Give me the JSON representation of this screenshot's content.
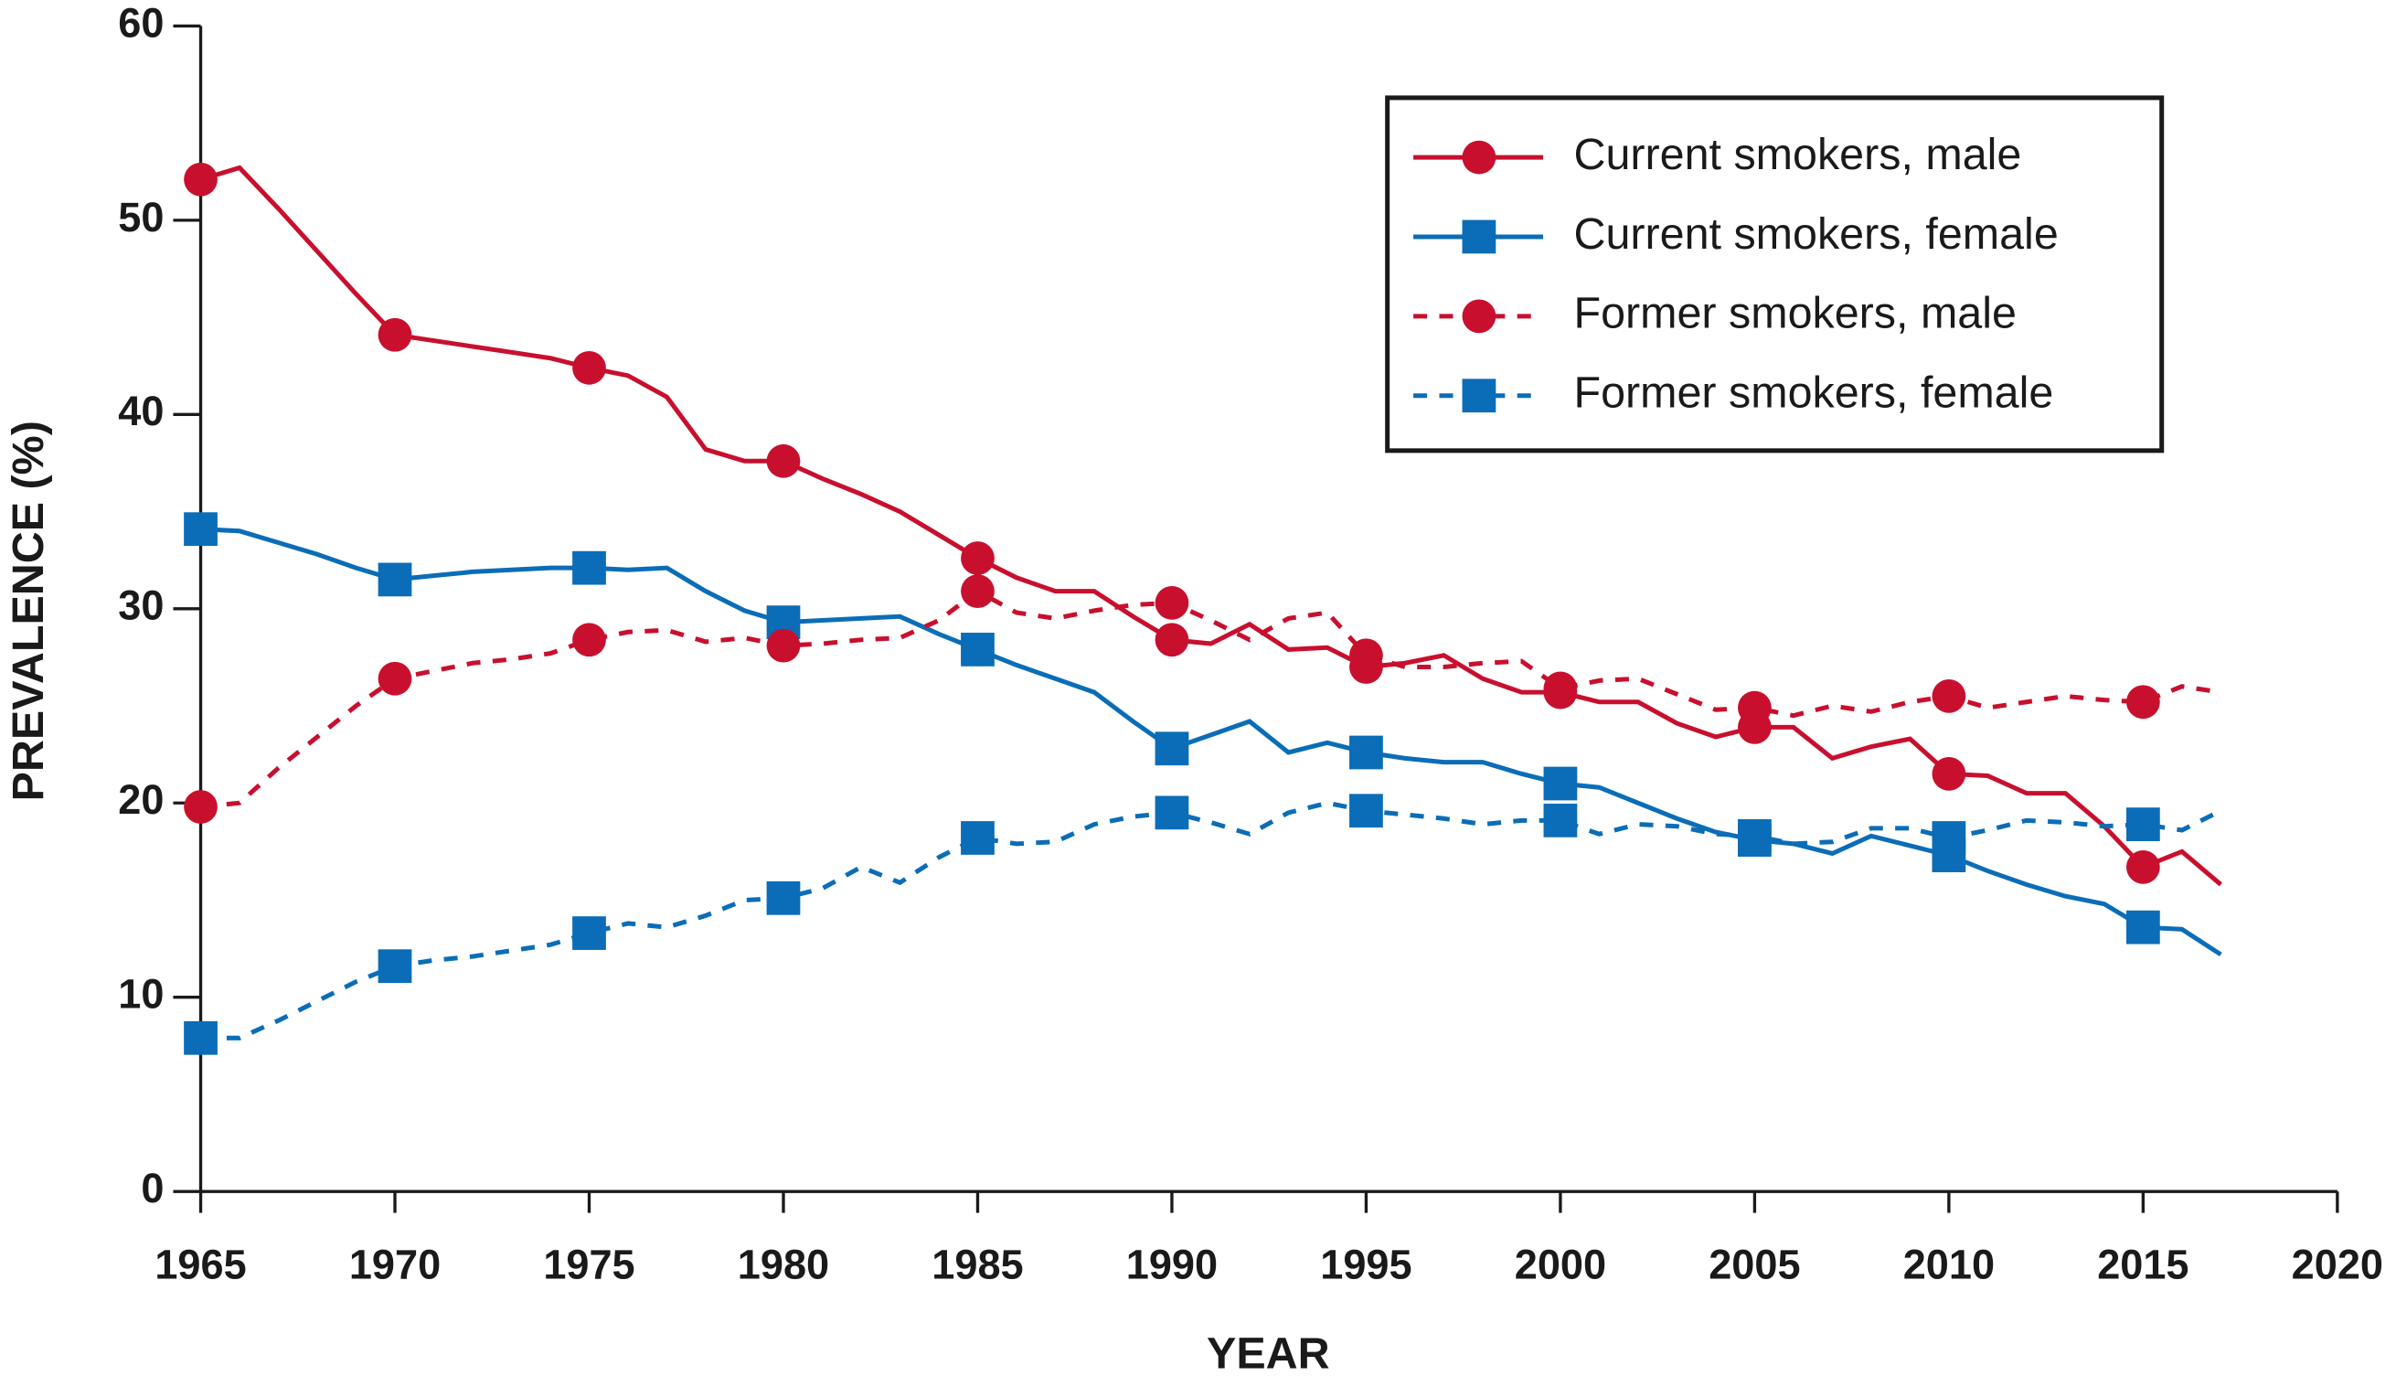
{
  "chart_data": {
    "type": "line",
    "x_label": "YEAR",
    "y_label": "PREVALENCE (%)",
    "x": [
      1965,
      1966,
      1967,
      1968,
      1969,
      1970,
      1971,
      1972,
      1973,
      1974,
      1975,
      1976,
      1977,
      1978,
      1979,
      1980,
      1981,
      1982,
      1983,
      1984,
      1985,
      1986,
      1987,
      1988,
      1989,
      1990,
      1991,
      1992,
      1993,
      1994,
      1995,
      1996,
      1997,
      1998,
      1999,
      2000,
      2001,
      2002,
      2003,
      2004,
      2005,
      2006,
      2007,
      2008,
      2009,
      2010,
      2011,
      2012,
      2013,
      2014,
      2015,
      2016,
      2017
    ],
    "series": [
      {
        "name": "Current smokers, male",
        "color": "#c8102e",
        "line_style": "solid",
        "marker": "circle",
        "values": [
          52.1,
          52.7,
          50.6,
          48.4,
          46.2,
          44.1,
          43.8,
          43.5,
          43.2,
          42.9,
          42.4,
          42.0,
          40.9,
          38.2,
          37.6,
          37.6,
          36.7,
          35.9,
          35.0,
          33.8,
          32.6,
          31.6,
          30.9,
          30.9,
          29.6,
          28.4,
          28.2,
          29.2,
          27.9,
          28.0,
          27.0,
          27.2,
          27.6,
          26.4,
          25.7,
          25.7,
          25.2,
          25.2,
          24.1,
          23.4,
          23.9,
          23.9,
          22.3,
          22.9,
          23.3,
          21.5,
          21.4,
          20.5,
          20.5,
          18.8,
          16.7,
          17.5,
          15.8
        ]
      },
      {
        "name": "Current smokers, female",
        "color": "#0b6db7",
        "line_style": "solid",
        "marker": "square",
        "values": [
          34.1,
          34.0,
          33.4,
          32.8,
          32.1,
          31.5,
          31.7,
          31.9,
          32.0,
          32.1,
          32.1,
          32.0,
          32.1,
          30.9,
          29.9,
          29.3,
          29.4,
          29.5,
          29.6,
          28.7,
          27.9,
          27.1,
          26.4,
          25.7,
          24.2,
          22.8,
          23.5,
          24.2,
          22.6,
          23.1,
          22.6,
          22.3,
          22.1,
          22.1,
          21.5,
          21.0,
          20.8,
          20.0,
          19.2,
          18.5,
          18.1,
          17.9,
          17.4,
          18.3,
          17.8,
          17.3,
          16.5,
          15.8,
          15.2,
          14.8,
          13.6,
          13.5,
          12.2
        ]
      },
      {
        "name": "Former smokers, male",
        "color": "#c8102e",
        "line_style": "dashed",
        "marker": "circle",
        "values": [
          19.8,
          20.0,
          21.8,
          23.4,
          25.0,
          26.4,
          26.8,
          27.2,
          27.4,
          27.7,
          28.4,
          28.8,
          28.9,
          28.3,
          28.5,
          28.1,
          28.2,
          28.4,
          28.5,
          29.4,
          30.9,
          29.8,
          29.5,
          29.9,
          30.2,
          30.3,
          29.4,
          28.4,
          29.5,
          29.8,
          27.6,
          27.0,
          27.0,
          27.2,
          27.3,
          25.9,
          26.3,
          26.4,
          25.6,
          24.8,
          24.9,
          24.5,
          25.0,
          24.7,
          25.2,
          25.5,
          24.9,
          25.2,
          25.5,
          25.3,
          25.2,
          26.0,
          25.7
        ]
      },
      {
        "name": "Former smokers, female",
        "color": "#0b6db7",
        "line_style": "dashed",
        "marker": "square",
        "values": [
          7.9,
          7.9,
          8.8,
          9.8,
          10.8,
          11.6,
          11.9,
          12.1,
          12.4,
          12.7,
          13.3,
          13.8,
          13.6,
          14.2,
          15.0,
          15.1,
          15.6,
          16.7,
          15.9,
          17.2,
          18.2,
          17.9,
          18.0,
          18.9,
          19.3,
          19.5,
          19.0,
          18.4,
          19.5,
          20.0,
          19.6,
          19.4,
          19.2,
          18.9,
          19.1,
          19.1,
          18.4,
          18.9,
          18.8,
          18.4,
          18.3,
          17.9,
          18.0,
          18.7,
          18.7,
          18.2,
          18.6,
          19.1,
          19.0,
          18.8,
          18.9,
          18.6,
          19.6
        ]
      }
    ],
    "marker_interval": 5,
    "xlim": [
      1965,
      2020
    ],
    "xticks": [
      1965,
      1970,
      1975,
      1980,
      1985,
      1990,
      1995,
      2000,
      2005,
      2010,
      2015,
      2020
    ],
    "ylim": [
      0,
      60
    ],
    "yticks": [
      0,
      10,
      20,
      30,
      40,
      50,
      60
    ],
    "grid": false,
    "legend": "upper right"
  }
}
